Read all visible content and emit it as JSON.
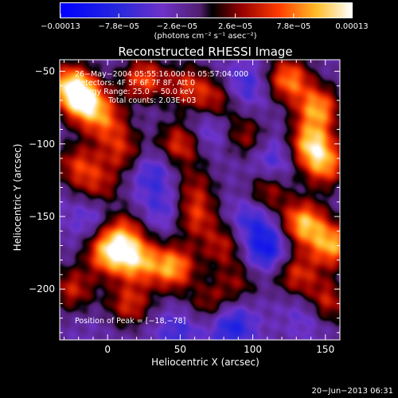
{
  "chart_data": {
    "type": "heatmap",
    "title": "Reconstructed RHESSI Image",
    "xlabel": "Heliocentric X (arcsec)",
    "ylabel": "Heliocentric Y (arcsec)",
    "xlim": [
      -33,
      160
    ],
    "ylim": [
      -235,
      -42
    ],
    "x_ticks": [
      0,
      50,
      100,
      150
    ],
    "x_tick_labels": [
      "0",
      "50",
      "100",
      "150"
    ],
    "y_ticks": [
      -50,
      -100,
      -150,
      -200
    ],
    "y_tick_labels": [
      "−50",
      "−100",
      "−150",
      "−200"
    ],
    "colorbar": {
      "min": -0.00013,
      "max": 0.00013,
      "tick_labels": [
        "−0.00013",
        "−7.8e−05",
        "−2.6e−05",
        "2.6e−05",
        "7.8e−05",
        "0.00013"
      ],
      "units": "(photons cm⁻² s⁻¹ asec⁻²)"
    },
    "annotations": {
      "time": "26−May−2004 05:55:16.000 to 05:57:04.000",
      "detectors": "Detectors: 4F 5F 6F 7F 8F, Att 0",
      "energy": "Energy Range: 25.0 − 50.0 keV",
      "method": "Clean     Total counts: 2.03E+03",
      "peak": "Position of Peak = [−18,−78]"
    },
    "peak": {
      "x": -18,
      "y": -78
    },
    "hot_spots": [
      {
        "x": -25,
        "y": -60,
        "amp": 1.0
      },
      {
        "x": -15,
        "y": -72,
        "amp": 0.9
      },
      {
        "x": 0,
        "y": -85,
        "amp": 0.55
      },
      {
        "x": 25,
        "y": -55,
        "amp": 0.7
      },
      {
        "x": 55,
        "y": -60,
        "amp": 0.55
      },
      {
        "x": 75,
        "y": -70,
        "amp": 0.5
      },
      {
        "x": 50,
        "y": -100,
        "amp": 0.65
      },
      {
        "x": -20,
        "y": -115,
        "amp": 0.6
      },
      {
        "x": 10,
        "y": -105,
        "amp": 0.5
      },
      {
        "x": 125,
        "y": -55,
        "amp": 0.8
      },
      {
        "x": 145,
        "y": -75,
        "amp": 0.85
      },
      {
        "x": 140,
        "y": -100,
        "amp": 0.9
      },
      {
        "x": 150,
        "y": -115,
        "amp": 0.75
      },
      {
        "x": 110,
        "y": -135,
        "amp": 0.55
      },
      {
        "x": 60,
        "y": -150,
        "amp": 0.6
      },
      {
        "x": 80,
        "y": -170,
        "amp": 0.5
      },
      {
        "x": 135,
        "y": -155,
        "amp": 0.95
      },
      {
        "x": 155,
        "y": -170,
        "amp": 0.9
      },
      {
        "x": -5,
        "y": -130,
        "amp": 0.45
      },
      {
        "x": 10,
        "y": -160,
        "amp": 0.6
      },
      {
        "x": 0,
        "y": -175,
        "amp": 0.9
      },
      {
        "x": 20,
        "y": -180,
        "amp": 0.85
      },
      {
        "x": 45,
        "y": -185,
        "amp": 0.9
      },
      {
        "x": -25,
        "y": -200,
        "amp": 0.55
      },
      {
        "x": 15,
        "y": -210,
        "amp": 0.6
      },
      {
        "x": 70,
        "y": -210,
        "amp": 0.45
      },
      {
        "x": 90,
        "y": -195,
        "amp": 0.35
      },
      {
        "x": 130,
        "y": -190,
        "amp": 0.6
      },
      {
        "x": 150,
        "y": -210,
        "amp": 0.7
      },
      {
        "x": 60,
        "y": -130,
        "amp": 0.4
      },
      {
        "x": 95,
        "y": -95,
        "amp": 0.45
      }
    ],
    "cold_spots": [
      {
        "x": 110,
        "y": -172,
        "amp": 1.0
      },
      {
        "x": 100,
        "y": -150,
        "amp": 0.7
      },
      {
        "x": 85,
        "y": -225,
        "amp": 0.8
      },
      {
        "x": 140,
        "y": -215,
        "amp": 0.6
      },
      {
        "x": 30,
        "y": -120,
        "amp": 0.55
      },
      {
        "x": 70,
        "y": -90,
        "amp": 0.5
      },
      {
        "x": 40,
        "y": -145,
        "amp": 0.55
      },
      {
        "x": -10,
        "y": -150,
        "amp": 0.5
      },
      {
        "x": 115,
        "y": -110,
        "amp": 0.55
      },
      {
        "x": 95,
        "y": -60,
        "amp": 0.55
      },
      {
        "x": 50,
        "y": -230,
        "amp": 0.5
      }
    ]
  },
  "footer": {
    "date": "20−Jun−2013 06:31"
  }
}
